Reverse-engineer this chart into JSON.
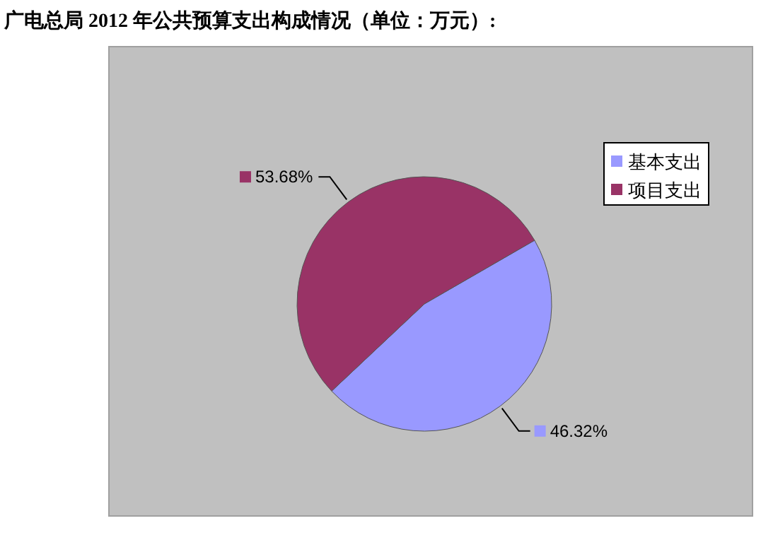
{
  "chart_data": {
    "type": "pie",
    "title": "广电总局 2012 年公共预算支出构成情况（单位：万元）:",
    "categories": [
      "基本支出",
      "项目支出"
    ],
    "values": [
      46.32,
      53.68
    ],
    "colors": [
      "#9999ff",
      "#993366"
    ],
    "value_labels": [
      "46.32%",
      "53.68%"
    ],
    "legend": "top right"
  }
}
